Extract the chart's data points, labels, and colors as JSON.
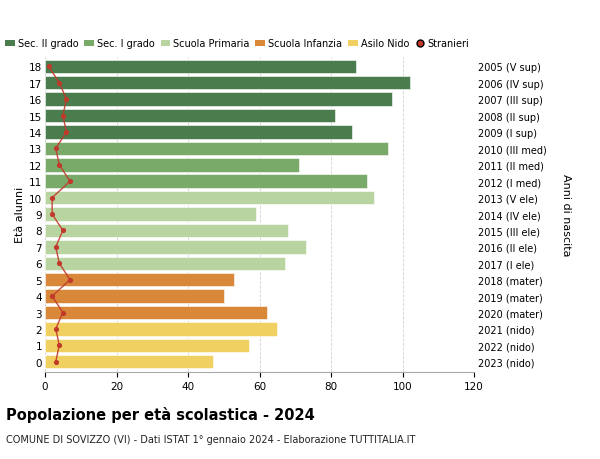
{
  "ages": [
    18,
    17,
    16,
    15,
    14,
    13,
    12,
    11,
    10,
    9,
    8,
    7,
    6,
    5,
    4,
    3,
    2,
    1,
    0
  ],
  "bar_values": [
    87,
    102,
    97,
    81,
    86,
    96,
    71,
    90,
    92,
    59,
    68,
    73,
    67,
    53,
    50,
    62,
    65,
    57,
    47
  ],
  "stranieri_values": [
    1,
    4,
    6,
    5,
    6,
    3,
    4,
    7,
    2,
    2,
    5,
    3,
    4,
    7,
    2,
    5,
    3,
    4,
    3
  ],
  "bar_colors": [
    "#4a7c4e",
    "#4a7c4e",
    "#4a7c4e",
    "#4a7c4e",
    "#4a7c4e",
    "#7aaa6a",
    "#7aaa6a",
    "#7aaa6a",
    "#b8d4a0",
    "#b8d4a0",
    "#b8d4a0",
    "#b8d4a0",
    "#b8d4a0",
    "#d9883a",
    "#d9883a",
    "#d9883a",
    "#f0d060",
    "#f0d060",
    "#f0d060"
  ],
  "right_labels": [
    "2005 (V sup)",
    "2006 (IV sup)",
    "2007 (III sup)",
    "2008 (II sup)",
    "2009 (I sup)",
    "2010 (III med)",
    "2011 (II med)",
    "2012 (I med)",
    "2013 (V ele)",
    "2014 (IV ele)",
    "2015 (III ele)",
    "2016 (II ele)",
    "2017 (I ele)",
    "2018 (mater)",
    "2019 (mater)",
    "2020 (mater)",
    "2021 (nido)",
    "2022 (nido)",
    "2023 (nido)"
  ],
  "legend_labels": [
    "Sec. II grado",
    "Sec. I grado",
    "Scuola Primaria",
    "Scuola Infanzia",
    "Asilo Nido",
    "Stranieri"
  ],
  "legend_colors": [
    "#4a7c4e",
    "#7aaa6a",
    "#b8d4a0",
    "#d9883a",
    "#f0d060",
    "#c0392b"
  ],
  "title_bold": "Popolazione per età scolastica - 2024",
  "subtitle": "COMUNE DI SOVIZZO (VI) - Dati ISTAT 1° gennaio 2024 - Elaborazione TUTTITALIA.IT",
  "xlabel_left": "Età alunni",
  "xlabel_right": "Anni di nascita",
  "xlim": [
    0,
    120
  ],
  "xticks": [
    0,
    20,
    40,
    60,
    80,
    100,
    120
  ],
  "background_color": "#ffffff",
  "grid_color": "#cccccc",
  "stranieri_color": "#c0392b",
  "stranieri_line_color": "#c0392b"
}
